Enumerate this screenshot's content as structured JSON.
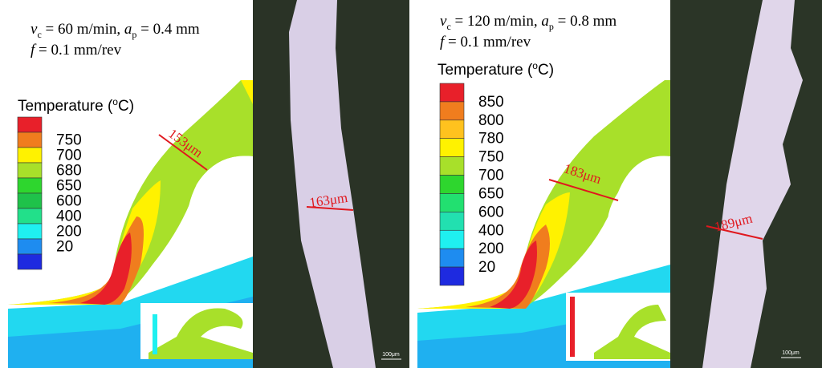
{
  "left": {
    "params": [
      "v",
      "c",
      " = 60 m/min, ",
      "a",
      "p",
      " = 0.4 mm"
    ],
    "feed": [
      "f",
      " = 0.1 mm/rev"
    ],
    "legend_title": [
      "Temperature (",
      "o",
      "C)"
    ],
    "legend_values": [
      750,
      700,
      680,
      650,
      600,
      400,
      200,
      20
    ],
    "legend_colors": [
      "#e8202a",
      "#f07d1e",
      "#fff200",
      "#a8e02a",
      "#2ed62e",
      "#1fc24a",
      "#22e08a",
      "#1ff0f0",
      "#1e8cf0",
      "#1e2ae0"
    ],
    "thickness_label": "153μm",
    "micro_label": "163μm",
    "scale_label": "100μm"
  },
  "right": {
    "params": [
      "v",
      "c",
      " = 120 m/min, ",
      "a",
      "p",
      " = 0.8 mm"
    ],
    "feed": [
      "f",
      " = 0.1 mm/rev"
    ],
    "legend_title": [
      "Temperature (",
      "o",
      "C)"
    ],
    "legend_values": [
      850,
      800,
      780,
      750,
      700,
      650,
      600,
      400,
      200,
      20
    ],
    "legend_colors": [
      "#e8202a",
      "#f07d1e",
      "#ffc21e",
      "#fff200",
      "#a8e02a",
      "#2ed62e",
      "#22e070",
      "#22e0b0",
      "#1ff0f0",
      "#1e8cf0",
      "#1e2ae0"
    ],
    "thickness_label": "183μm",
    "micro_label": "189μm",
    "scale_label": "100μm"
  }
}
